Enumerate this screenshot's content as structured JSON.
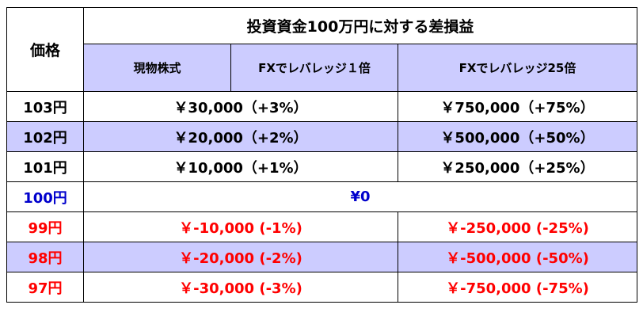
{
  "header": {
    "price": "価格",
    "title": "投資資金100万円に対する差損益",
    "cols": [
      "現物株式",
      "FXでレバレッジ１倍",
      "FXでレバレッジ25倍"
    ]
  },
  "rows": [
    {
      "price": "103円",
      "spot": "￥30,000（+3%）",
      "fx25": "￥750,000（+75%）"
    },
    {
      "price": "102円",
      "spot": "￥20,000（+2%）",
      "fx25": "￥500,000（+50%）"
    },
    {
      "price": "101円",
      "spot": "￥10,000（+1%）",
      "fx25": "￥250,000（+25%）"
    },
    {
      "price": "100円",
      "all": "¥0"
    },
    {
      "price": "99円",
      "spot": "￥-10,000 (-1%)",
      "fx25": "￥-250,000 (-25%)"
    },
    {
      "price": "98円",
      "spot": "￥-20,000 (-2%)",
      "fx25": "￥-500,000 (-50%)"
    },
    {
      "price": "97円",
      "spot": "￥-30,000 (-3%)",
      "fx25": "￥-750,000 (-75%)"
    }
  ],
  "colors": {
    "header_bg": "#ccccff",
    "positive_row_text": "#000000",
    "zero_row_text": "#0000cc",
    "negative_row_text": "#ff0000"
  }
}
